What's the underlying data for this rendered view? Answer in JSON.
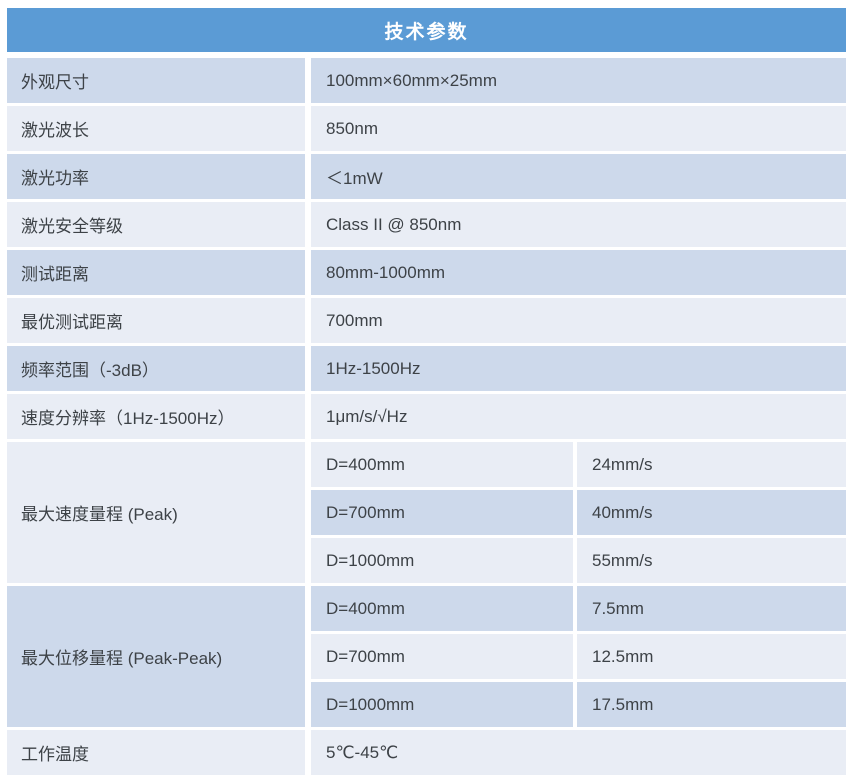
{
  "header": {
    "title": "技术参数"
  },
  "colors": {
    "header_bg": "#5b9bd5",
    "header_text": "#ffffff",
    "band_dark": "#cdd9eb",
    "band_light": "#e9edf5",
    "body_text": "#3d4247"
  },
  "specs": [
    {
      "label": "外观尺寸",
      "value": "100mm×60mm×25mm"
    },
    {
      "label": "激光波长",
      "value": "850nm"
    },
    {
      "label": "激光功率",
      "value": "＜1mW"
    },
    {
      "label": "激光安全等级",
      "value": "Class II @ 850nm"
    },
    {
      "label": "测试距离",
      "value": "80mm-1000mm"
    },
    {
      "label": "最优测试距离",
      "value": "700mm"
    },
    {
      "label": "频率范围（-3dB）",
      "value": "1Hz-1500Hz"
    },
    {
      "label": "速度分辨率（1Hz-1500Hz）",
      "value": "1μm/s/√Hz"
    },
    {
      "label": "最大速度量程 (Peak)",
      "entries": [
        {
          "condition": "D=400mm",
          "value": "24mm/s"
        },
        {
          "condition": "D=700mm",
          "value": "40mm/s"
        },
        {
          "condition": "D=1000mm",
          "value": "55mm/s"
        }
      ]
    },
    {
      "label": "最大位移量程 (Peak-Peak)",
      "entries": [
        {
          "condition": "D=400mm",
          "value": "7.5mm"
        },
        {
          "condition": "D=700mm",
          "value": "12.5mm"
        },
        {
          "condition": "D=1000mm",
          "value": "17.5mm"
        }
      ]
    },
    {
      "label": "工作温度",
      "value": "5℃-45℃"
    }
  ]
}
